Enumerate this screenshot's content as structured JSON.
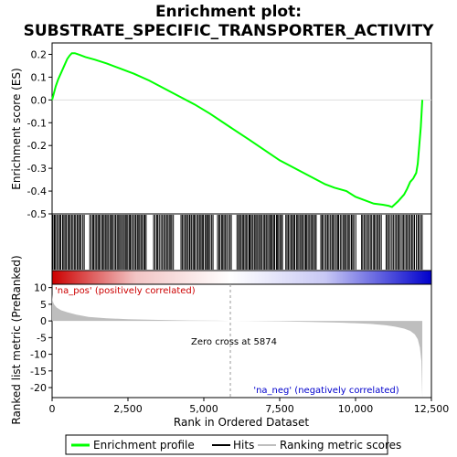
{
  "title_line1": "Enrichment plot:",
  "title_line2": "SUBSTRATE_SPECIFIC_TRANSPORTER_ACTIVITY",
  "colors": {
    "enrichment": "#00ff00",
    "hits": "#000000",
    "metric": "#bebebe",
    "pos_label": "#cc0000",
    "neg_label": "#0000cc",
    "zero_line": "#999999"
  },
  "chart_data": [
    {
      "type": "line",
      "name": "enrichment-profile",
      "ylabel": "Enrichment score (ES)",
      "xlim": [
        0,
        12500
      ],
      "ylim": [
        -0.5,
        0.25
      ],
      "yticks": [
        -0.5,
        -0.4,
        -0.3,
        -0.2,
        -0.1,
        0.0,
        0.1,
        0.2
      ],
      "ytick_labels": [
        "-0.5",
        "-0.4",
        "-0.3",
        "-0.2",
        "-0.1",
        "0.0",
        "0.1",
        "0.2"
      ],
      "x": [
        0,
        60,
        120,
        200,
        300,
        400,
        500,
        580,
        650,
        750,
        900,
        1100,
        1400,
        1800,
        2200,
        2700,
        3200,
        3700,
        4200,
        4700,
        5200,
        5874,
        6500,
        7000,
        7500,
        8000,
        8500,
        9000,
        9300,
        9700,
        10000,
        10300,
        10600,
        10900,
        11100,
        11200,
        11400,
        11500,
        11600,
        11700,
        11800,
        11900,
        12000,
        12050,
        12100,
        12150,
        12200
      ],
      "y": [
        0.0,
        0.03,
        0.06,
        0.09,
        0.12,
        0.15,
        0.18,
        0.195,
        0.205,
        0.205,
        0.198,
        0.188,
        0.177,
        0.16,
        0.14,
        0.115,
        0.085,
        0.05,
        0.015,
        -0.02,
        -0.06,
        -0.12,
        -0.175,
        -0.22,
        -0.265,
        -0.3,
        -0.335,
        -0.37,
        -0.385,
        -0.4,
        -0.425,
        -0.44,
        -0.455,
        -0.46,
        -0.465,
        -0.47,
        -0.445,
        -0.43,
        -0.415,
        -0.39,
        -0.36,
        -0.345,
        -0.32,
        -0.28,
        -0.2,
        -0.12,
        0.0
      ]
    },
    {
      "type": "scatter",
      "name": "hits",
      "xlim": [
        0,
        12500
      ],
      "hit_ranges": [
        [
          30,
          1050
        ],
        [
          1250,
          3100
        ],
        [
          3350,
          4000
        ],
        [
          4250,
          5300
        ],
        [
          5450,
          5900
        ],
        [
          6100,
          7600
        ],
        [
          7700,
          8700
        ],
        [
          8850,
          9450
        ],
        [
          9500,
          10000
        ],
        [
          10200,
          10850
        ],
        [
          11000,
          11250
        ],
        [
          11300,
          11950
        ],
        [
          12000,
          12200
        ]
      ]
    },
    {
      "type": "area",
      "name": "ranked-list-metric",
      "xlabel": "Rank in Ordered Dataset",
      "ylabel": "Ranked list metric (PreRanked)",
      "xlim": [
        0,
        12500
      ],
      "ylim": [
        -23,
        11
      ],
      "xticks": [
        0,
        2500,
        5000,
        7500,
        10000,
        12500
      ],
      "xtick_labels": [
        "0",
        "2,500",
        "5,000",
        "7,500",
        "10,000",
        "12,500"
      ],
      "yticks": [
        -20,
        -15,
        -10,
        -5,
        0,
        5,
        10
      ],
      "ytick_labels": [
        "-20",
        "-15",
        "-10",
        "-5",
        "0",
        "5",
        "10"
      ],
      "x": [
        0,
        20,
        60,
        150,
        300,
        500,
        800,
        1200,
        1800,
        2500,
        3500,
        4500,
        5500,
        5874,
        6500,
        7500,
        8500,
        9500,
        10000,
        10500,
        11000,
        11300,
        11600,
        11800,
        11950,
        12050,
        12120,
        12170,
        12200
      ],
      "y": [
        8.0,
        6.0,
        5.0,
        4.0,
        3.2,
        2.6,
        1.9,
        1.2,
        0.8,
        0.5,
        0.3,
        0.15,
        0.05,
        0.0,
        -0.05,
        -0.15,
        -0.3,
        -0.5,
        -0.7,
        -0.9,
        -1.3,
        -1.7,
        -2.3,
        -3.0,
        -4.0,
        -5.5,
        -8.0,
        -12.0,
        -23.0
      ],
      "zero_cross": 5874
    }
  ],
  "annotations": {
    "pos_label": "'na_pos' (positively correlated)",
    "neg_label": "'na_neg' (negatively correlated)",
    "zero_cross": "Zero cross at 5874"
  },
  "legend": {
    "items": [
      {
        "label": "Enrichment profile",
        "color": "#00ff00"
      },
      {
        "label": "Hits",
        "color": "#000000"
      },
      {
        "label": "Ranking metric scores",
        "color": "#bebebe"
      }
    ]
  }
}
